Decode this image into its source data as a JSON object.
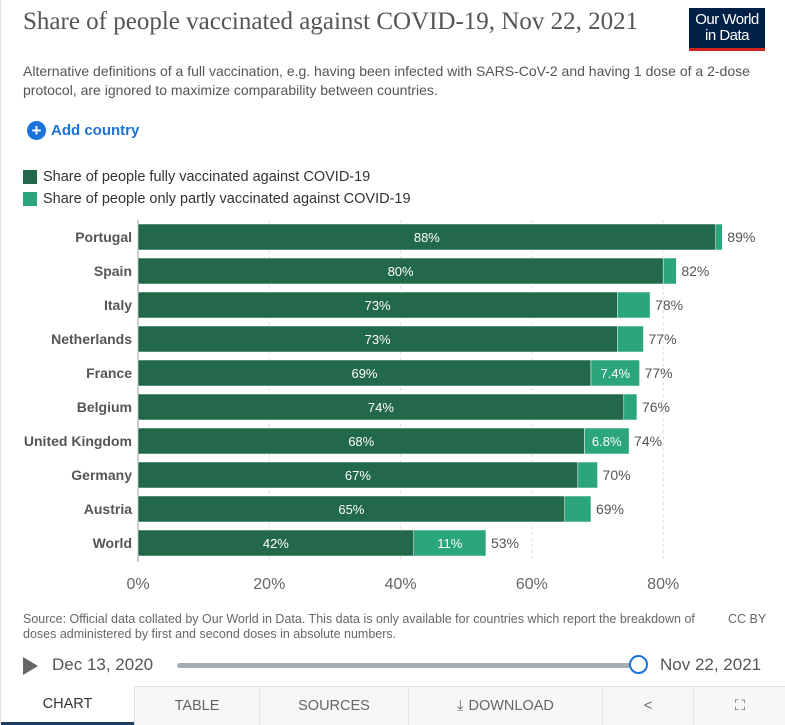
{
  "header": {
    "title": "Share of people vaccinated against COVID-19, Nov 22, 2021",
    "subtitle": "Alternative definitions of a full vaccination, e.g. having been infected with SARS-CoV-2 and having 1 dose of a 2-dose protocol, are ignored to maximize comparability between countries.",
    "logo_text": "Our World in Data",
    "add_country": "Add country"
  },
  "colors": {
    "fully": "#22684b",
    "partly": "#2ba57b",
    "logo_bg": "#002147",
    "accent": "#1a73d9"
  },
  "chart_data": {
    "type": "bar",
    "stacked": true,
    "orientation": "horizontal",
    "title": "Share of people vaccinated against COVID-19, Nov 22, 2021",
    "categories": [
      "Portugal",
      "Spain",
      "Italy",
      "Netherlands",
      "France",
      "Belgium",
      "United Kingdom",
      "Germany",
      "Austria",
      "World"
    ],
    "series": [
      {
        "name": "Share of people fully vaccinated against COVID-19",
        "values": [
          88,
          80,
          73,
          73,
          69,
          74,
          68,
          67,
          65,
          42
        ],
        "labels": [
          "88%",
          "80%",
          "73%",
          "73%",
          "69%",
          "74%",
          "68%",
          "67%",
          "65%",
          "42%"
        ]
      },
      {
        "name": "Share of people only partly vaccinated against COVID-19",
        "values": [
          1,
          2,
          5,
          4,
          7.4,
          2,
          6.8,
          3,
          4,
          11
        ],
        "labels": [
          "",
          "",
          "",
          "",
          "7.4%",
          "",
          "6.8%",
          "",
          "",
          "11%"
        ]
      }
    ],
    "totals": [
      "89%",
      "82%",
      "78%",
      "77%",
      "77%",
      "76%",
      "74%",
      "70%",
      "69%",
      "53%"
    ],
    "xticks": [
      "0%",
      "20%",
      "40%",
      "60%",
      "80%"
    ],
    "xtick_values": [
      0,
      20,
      40,
      60,
      80
    ],
    "xlim": [
      0,
      90
    ],
    "legend_position": "top-left",
    "grid": true
  },
  "footer": {
    "source": "Source: Official data collated by Our World in Data. This data is only available for countries which report the breakdown of doses administered by first and second doses in absolute numbers.",
    "license": "CC BY"
  },
  "timeline": {
    "start": "Dec 13, 2020",
    "end": "Nov 22, 2021",
    "position": 1.0
  },
  "tabs": {
    "chart": "CHART",
    "table": "TABLE",
    "sources": "SOURCES",
    "download": "DOWNLOAD"
  }
}
